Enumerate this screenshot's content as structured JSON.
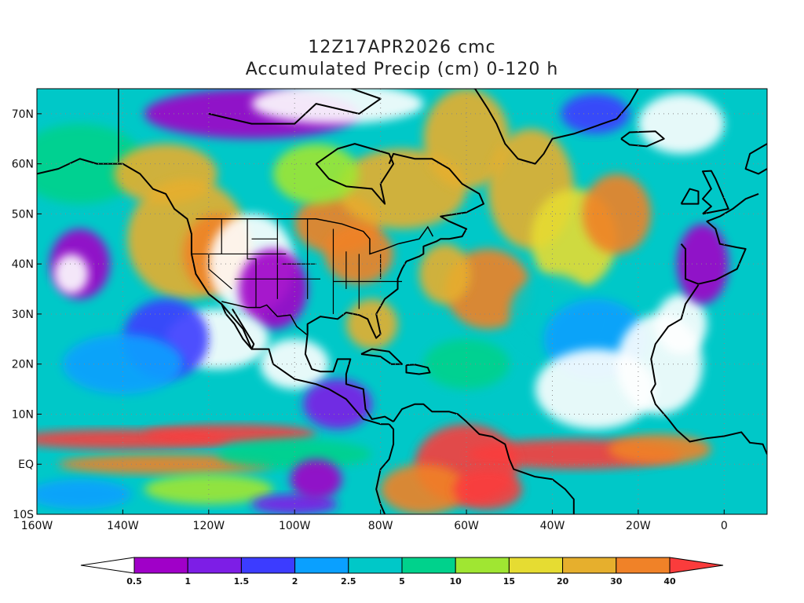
{
  "title": {
    "line1": "12Z17APR2026 cmc",
    "line2": "Accumulated Precip (cm) 0-120 h"
  },
  "map": {
    "lon_range": [
      -160,
      10
    ],
    "lat_range": [
      -10,
      75
    ],
    "lon_ticks": [
      {
        "value": -160,
        "label": "160W"
      },
      {
        "value": -140,
        "label": "140W"
      },
      {
        "value": -120,
        "label": "120W"
      },
      {
        "value": -100,
        "label": "100W"
      },
      {
        "value": -80,
        "label": "80W"
      },
      {
        "value": -60,
        "label": "60W"
      },
      {
        "value": -40,
        "label": "40W"
      },
      {
        "value": -20,
        "label": "20W"
      },
      {
        "value": 0,
        "label": "0"
      }
    ],
    "lat_ticks": [
      {
        "value": -10,
        "label": "10S"
      },
      {
        "value": 0,
        "label": "EQ"
      },
      {
        "value": 10,
        "label": "10N"
      },
      {
        "value": 20,
        "label": "20N"
      },
      {
        "value": 30,
        "label": "30N"
      },
      {
        "value": 40,
        "label": "40N"
      },
      {
        "value": 50,
        "label": "50N"
      },
      {
        "value": 60,
        "label": "60N"
      },
      {
        "value": 70,
        "label": "70N"
      }
    ],
    "grid": true
  },
  "colorbar": {
    "labels": [
      "0.5",
      "1",
      "1.5",
      "2",
      "2.5",
      "5",
      "10",
      "15",
      "20",
      "30",
      "40"
    ],
    "colors": [
      "#ffffff",
      "#a000c8",
      "#7d1ee6",
      "#3c3cff",
      "#0aa0ff",
      "#00c8c8",
      "#00d28c",
      "#a0e632",
      "#e6dc32",
      "#e6af2d",
      "#f08228",
      "#fa3c3c"
    ]
  }
}
